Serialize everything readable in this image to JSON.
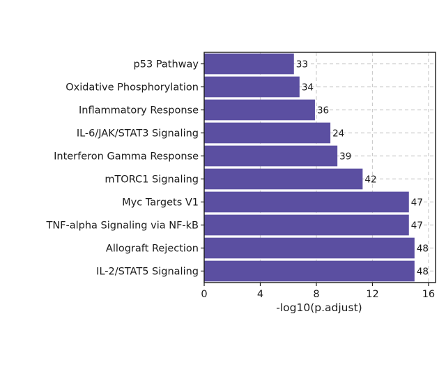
{
  "chart_data": {
    "type": "bar",
    "orientation": "horizontal",
    "title": "",
    "xlabel": "-log10(p.adjust)",
    "ylabel": "",
    "xlim": [
      0,
      16.5
    ],
    "xticks": [
      0,
      4,
      8,
      12,
      16
    ],
    "grid": true,
    "bar_color": "#5b4fa1",
    "grid_color": "#cccccc",
    "categories": [
      "p53 Pathway",
      "Oxidative Phosphorylation",
      "Inflammatory Response",
      "IL-6/JAK/STAT3 Signaling",
      "Interferon Gamma Response",
      "mTORC1 Signaling",
      "Myc Targets V1",
      "TNF-alpha Signaling via NF-kB",
      "Allograft Rejection",
      "IL-2/STAT5 Signaling"
    ],
    "values": [
      6.4,
      6.8,
      7.9,
      9.0,
      9.5,
      11.3,
      14.6,
      14.6,
      15.0,
      15.0
    ],
    "bar_labels": [
      "33",
      "34",
      "36",
      "24",
      "39",
      "42",
      "47",
      "47",
      "48",
      "48"
    ]
  }
}
